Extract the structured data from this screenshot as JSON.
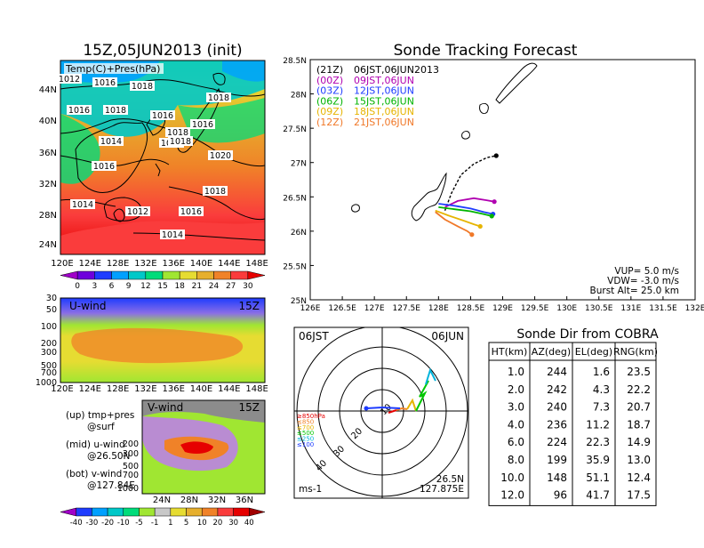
{
  "left": {
    "title": "15Z,05JUN2013 (init)",
    "map": {
      "label": "Temp(C)+Pres(hPa)",
      "lat_labels": [
        "44N",
        "40N",
        "36N",
        "32N",
        "28N",
        "24N"
      ],
      "lon_labels": [
        "120E",
        "124E",
        "128E",
        "132E",
        "136E",
        "140E",
        "144E",
        "148E"
      ],
      "isobar_labels": [
        "1012",
        "1016",
        "1018",
        "1016",
        "1018",
        "1014",
        "1016",
        "1016",
        "1018",
        "1018",
        "1018",
        "1016",
        "1018",
        "1020",
        "1018",
        "1014",
        "1012",
        "1016",
        "1014"
      ],
      "colorbar_labels": [
        "0",
        "3",
        "6",
        "9",
        "12",
        "15",
        "18",
        "21",
        "24",
        "27",
        "30"
      ],
      "colorbar_colors": [
        "#a000c8",
        "#6e00dc",
        "#1e3cff",
        "#00a0ff",
        "#00c8c8",
        "#00dc7a",
        "#a0e632",
        "#e6dc32",
        "#e6af2d",
        "#f08228",
        "#fa3c3c",
        "#e60000"
      ]
    },
    "uwind": {
      "label": "U-wind",
      "time": "15Z",
      "p_labels": [
        "30",
        "50",
        "100",
        "200",
        "300",
        "500",
        "700",
        "1000"
      ],
      "lon_labels": [
        "120E",
        "124E",
        "128E",
        "132E",
        "136E",
        "140E",
        "144E",
        "148E"
      ]
    },
    "vwind": {
      "label": "V-wind",
      "time": "15Z",
      "p_labels": [
        "200",
        "300",
        "500",
        "700",
        "1000"
      ],
      "lat_labels": [
        "24N",
        "28N",
        "32N",
        "36N"
      ],
      "colorbar_labels": [
        "-40",
        "-30",
        "-20",
        "-10",
        "-5",
        "-1",
        "1",
        "5",
        "10",
        "20",
        "30",
        "40"
      ],
      "colorbar_colors": [
        "#a000c8",
        "#1e3cff",
        "#00a0ff",
        "#00c8c8",
        "#00dc7a",
        "#a0e632",
        "#c8c8c8",
        "#e6dc32",
        "#e6af2d",
        "#f08228",
        "#fa3c3c",
        "#e60000",
        "#a00000"
      ]
    },
    "legend_notes": {
      "l1": "(up) tmp+pres",
      "l2": "@surf",
      "l3": "(mid) u-wind",
      "l4": "@26.50N",
      "l5": "(bot) v-wind",
      "l6": "@127.84E"
    }
  },
  "track": {
    "title": "Sonde Tracking Forecast",
    "lat_labels": [
      "28.5N",
      "28N",
      "27.5N",
      "27N",
      "26.5N",
      "26N",
      "25.5N",
      "25N"
    ],
    "lon_labels": [
      "126E",
      "126.5E",
      "127E",
      "127.5E",
      "128E",
      "128.5E",
      "129E",
      "129.5E",
      "130E",
      "130.5E",
      "131E",
      "131.5E",
      "132E"
    ],
    "legend": [
      {
        "code": "(21Z)",
        "time": "06JST,06JUN2013",
        "color": "#000000"
      },
      {
        "code": "(00Z)",
        "time": "09JST,06JUN",
        "color": "#b000b0"
      },
      {
        "code": "(03Z)",
        "time": "12JST,06JUN",
        "color": "#1e3cff"
      },
      {
        "code": "(06Z)",
        "time": "15JST,06JUN",
        "color": "#00b400"
      },
      {
        "code": "(09Z)",
        "time": "18JST,06JUN",
        "color": "#e6b400"
      },
      {
        "code": "(12Z)",
        "time": "21JST,06JUN",
        "color": "#f07828"
      }
    ],
    "params": {
      "vup": "VUP= 5.0 m/s",
      "vdw": "VDW= -3.0 m/s",
      "burst": "Burst Alt= 25.0 km"
    }
  },
  "chart_data": [
    {
      "type": "line",
      "title": "Sonde Tracking Forecast",
      "xlim": [
        126,
        132
      ],
      "ylim": [
        25,
        28.5
      ],
      "series": [
        {
          "name": "(21Z) 06JST,06JUN2013",
          "color": "#000000",
          "x": [
            128.1,
            128.2,
            128.35,
            128.55,
            128.75,
            128.9
          ],
          "y": [
            26.3,
            26.55,
            26.82,
            26.98,
            27.07,
            27.1
          ]
        },
        {
          "name": "(00Z) 09JST,06JUN",
          "color": "#b000b0",
          "x": [
            128.1,
            128.3,
            128.55,
            128.75,
            128.87
          ],
          "y": [
            26.35,
            26.44,
            26.48,
            26.45,
            26.43
          ]
        },
        {
          "name": "(03Z) 12JST,06JUN",
          "color": "#1e3cff",
          "x": [
            128.0,
            128.25,
            128.5,
            128.7,
            128.85
          ],
          "y": [
            26.4,
            26.37,
            26.33,
            26.28,
            26.25
          ]
        },
        {
          "name": "(06Z) 15JST,06JUN",
          "color": "#00b400",
          "x": [
            128.0,
            128.25,
            128.5,
            128.7,
            128.83
          ],
          "y": [
            26.35,
            26.32,
            26.29,
            26.25,
            26.22
          ]
        },
        {
          "name": "(09Z) 18JST,06JUN",
          "color": "#e6b400",
          "x": [
            127.95,
            128.15,
            128.4,
            128.55,
            128.65
          ],
          "y": [
            26.3,
            26.23,
            26.15,
            26.1,
            26.07
          ]
        },
        {
          "name": "(12Z) 21JST,06JUN",
          "color": "#f07828",
          "x": [
            127.95,
            128.1,
            128.3,
            128.45,
            128.52
          ],
          "y": [
            26.28,
            26.17,
            26.07,
            26.0,
            25.95
          ]
        }
      ]
    },
    {
      "type": "table",
      "title": "Sonde Dir from COBRA",
      "columns": [
        "HT(km)",
        "AZ(deg)",
        "EL(deg)",
        "RNG(km)"
      ],
      "rows": [
        [
          "1.0",
          "244",
          "1.6",
          "23.5"
        ],
        [
          "2.0",
          "242",
          "4.3",
          "22.2"
        ],
        [
          "3.0",
          "240",
          "7.3",
          "20.7"
        ],
        [
          "4.0",
          "236",
          "11.2",
          "18.7"
        ],
        [
          "6.0",
          "224",
          "22.3",
          "14.9"
        ],
        [
          "8.0",
          "199",
          "35.9",
          "13.0"
        ],
        [
          "10.0",
          "148",
          "51.1",
          "12.4"
        ],
        [
          "12.0",
          "96",
          "41.7",
          "17.5"
        ]
      ]
    }
  ],
  "hodo": {
    "jst": "06JST",
    "date": "06JUN",
    "units": "ms-1",
    "lat": "26.5N",
    "lon": "127.875E",
    "ring_labels": [
      "10",
      "20",
      "30",
      "40"
    ],
    "levels": [
      {
        "label": "≥850hPa",
        "color": "#e60000"
      },
      {
        "label": "≤850",
        "color": "#f08228"
      },
      {
        "label": "≤700",
        "color": "#e6b400"
      },
      {
        "label": "≤500",
        "color": "#00c800"
      },
      {
        "label": "≤250",
        "color": "#00b4dc"
      },
      {
        "label": "≤100",
        "color": "#1e3cff"
      }
    ]
  }
}
